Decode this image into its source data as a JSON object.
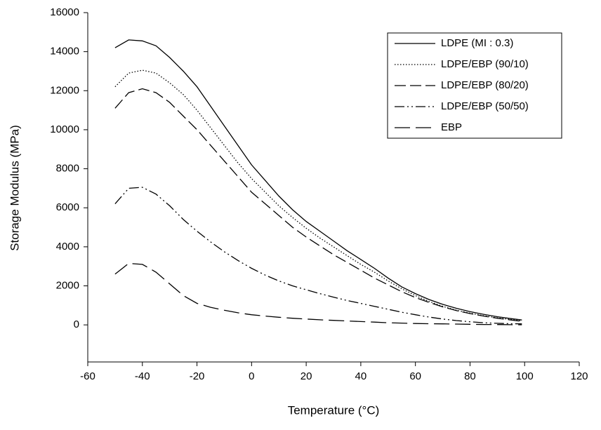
{
  "chart_data": {
    "type": "line",
    "x_label": "Temperature (°C)",
    "y_label": "Storage Modulus (MPa)",
    "x": [
      -50,
      -45,
      -40,
      -35,
      -30,
      -25,
      -20,
      -15,
      -10,
      -5,
      0,
      5,
      10,
      15,
      20,
      25,
      30,
      35,
      40,
      45,
      50,
      55,
      60,
      65,
      70,
      75,
      80,
      85,
      90,
      95,
      99
    ],
    "series": [
      {
        "name": "LDPE (MI : 0.3)",
        "color": "#000000",
        "dash": "solid",
        "values": [
          14200,
          14600,
          14550,
          14300,
          13700,
          13000,
          12200,
          11200,
          10200,
          9200,
          8200,
          7400,
          6600,
          5900,
          5300,
          4800,
          4300,
          3800,
          3350,
          2900,
          2400,
          1950,
          1600,
          1300,
          1050,
          850,
          680,
          540,
          420,
          320,
          250
        ]
      },
      {
        "name": "LDPE/EBP (90/10)",
        "color": "#000000",
        "dash": "dotted",
        "values": [
          12200,
          12900,
          13050,
          12900,
          12400,
          11800,
          11000,
          10100,
          9200,
          8300,
          7500,
          6800,
          6100,
          5500,
          4950,
          4450,
          4000,
          3550,
          3100,
          2700,
          2250,
          1850,
          1500,
          1200,
          950,
          750,
          600,
          470,
          360,
          270,
          200
        ]
      },
      {
        "name": "LDPE/EBP (80/20)",
        "color": "#000000",
        "dash": "dashed",
        "values": [
          11100,
          11900,
          12100,
          11900,
          11400,
          10700,
          10000,
          9200,
          8400,
          7600,
          6800,
          6200,
          5600,
          5000,
          4500,
          4050,
          3600,
          3200,
          2800,
          2400,
          2050,
          1700,
          1400,
          1150,
          920,
          730,
          580,
          450,
          340,
          250,
          180
        ]
      },
      {
        "name": "LDPE/EBP (50/50)",
        "color": "#000000",
        "dash": "dash-dot-dot",
        "values": [
          6200,
          7000,
          7050,
          6700,
          6100,
          5400,
          4800,
          4250,
          3750,
          3300,
          2900,
          2550,
          2250,
          2000,
          1800,
          1600,
          1420,
          1250,
          1100,
          950,
          800,
          650,
          520,
          400,
          300,
          220,
          160,
          110,
          80,
          60,
          50
        ]
      },
      {
        "name": "EBP",
        "color": "#000000",
        "dash": "long-dash",
        "values": [
          2600,
          3150,
          3100,
          2700,
          2100,
          1500,
          1100,
          900,
          750,
          620,
          520,
          450,
          390,
          340,
          300,
          260,
          230,
          200,
          170,
          140,
          110,
          90,
          70,
          60,
          50,
          40,
          30,
          20,
          15,
          10,
          5
        ]
      }
    ],
    "xlim": [
      -60,
      120
    ],
    "xticks": [
      -60,
      -40,
      -20,
      0,
      20,
      40,
      60,
      80,
      100,
      120
    ],
    "ylim": [
      -1900,
      16000
    ],
    "yticks": [
      0,
      2000,
      4000,
      6000,
      8000,
      10000,
      12000,
      14000,
      16000
    ],
    "legend": "upper right",
    "grid": false
  }
}
